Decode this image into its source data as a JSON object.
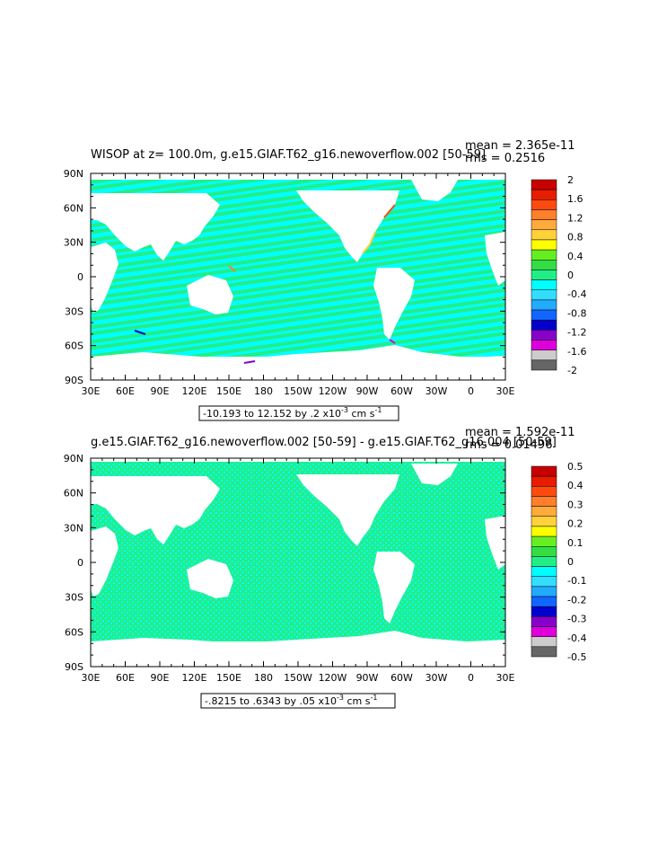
{
  "chart_data": [
    {
      "type": "heatmap",
      "title": "WISOP at z= 100.0m, g.e15.GIAF.T62_g16.newoverflow.002 [50-59]",
      "stats": {
        "mean": "mean = 2.365e-11",
        "rms": "rms = 0.2516"
      },
      "x_tick_labels": [
        "30E",
        "60E",
        "90E",
        "120E",
        "150E",
        "180",
        "150W",
        "120W",
        "90W",
        "60W",
        "30W",
        "0",
        "30E"
      ],
      "y_tick_labels": [
        "90N",
        "60N",
        "30N",
        "0",
        "30S",
        "60S",
        "90S"
      ],
      "xlim": [
        30,
        390
      ],
      "ylim": [
        -90,
        90
      ],
      "range_label": {
        "text": "-10.193 to 12.152 by .2 x10",
        "exp": "-3",
        "units": " cm s",
        "units_exp": "-1"
      },
      "colorbar": {
        "labels": [
          "2",
          "1.6",
          "1.2",
          "0.8",
          "0.4",
          "0",
          "-0.4",
          "-0.8",
          "-1.2",
          "-1.6",
          "-2"
        ],
        "colors": [
          "#c80000",
          "#e81c00",
          "#fd4b0f",
          "#ff7f2a",
          "#ffaa3c",
          "#ffd23c",
          "#ffff00",
          "#66ee22",
          "#33dd44",
          "#22ee88",
          "#00ffff",
          "#33ddff",
          "#22aaff",
          "#1166ff",
          "#0000cc",
          "#8800cc",
          "#dd00dd",
          "#cccccc",
          "#666666"
        ]
      },
      "dominant_colors": {
        "ocean_a": "#22ee88",
        "ocean_b": "#00ffff",
        "land": "#ffffff"
      }
    },
    {
      "type": "heatmap",
      "title": "g.e15.GIAF.T62_g16.newoverflow.002 [50-59] - g.e15.GIAF.T62_g16.004 [50-59]",
      "stats": {
        "mean": "mean = 1.592e-11",
        "rms": "rms = 0.01496"
      },
      "x_tick_labels": [
        "30E",
        "60E",
        "90E",
        "120E",
        "150E",
        "180",
        "150W",
        "120W",
        "90W",
        "60W",
        "30W",
        "0",
        "30E"
      ],
      "y_tick_labels": [
        "90N",
        "60N",
        "30N",
        "0",
        "30S",
        "60S",
        "90S"
      ],
      "xlim": [
        30,
        390
      ],
      "ylim": [
        -90,
        90
      ],
      "range_label": {
        "text": "-.8215 to .6343 by .05 x10",
        "exp": "-3",
        "units": " cm s",
        "units_exp": "-1"
      },
      "colorbar": {
        "labels": [
          "0.5",
          "0.4",
          "0.3",
          "0.2",
          "0.1",
          "0",
          "-0.1",
          "-0.2",
          "-0.3",
          "-0.4",
          "-0.5"
        ],
        "colors": [
          "#c80000",
          "#e81c00",
          "#fd4b0f",
          "#ff7f2a",
          "#ffaa3c",
          "#ffd23c",
          "#ffff00",
          "#66ee22",
          "#33dd44",
          "#22ee88",
          "#00ffff",
          "#33ddff",
          "#22aaff",
          "#1166ff",
          "#0000cc",
          "#8800cc",
          "#dd00dd",
          "#cccccc",
          "#666666"
        ]
      },
      "dominant_colors": {
        "ocean_a": "#22ee88",
        "ocean_b": "#00ffff",
        "land": "#ffffff"
      }
    }
  ]
}
